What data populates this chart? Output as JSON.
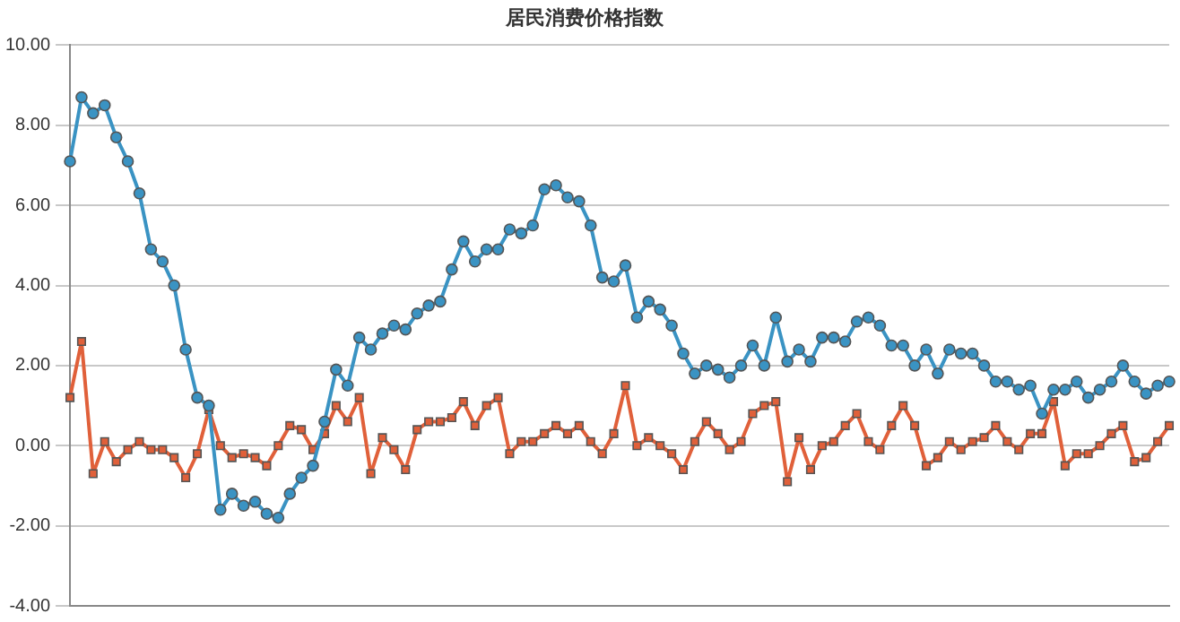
{
  "chart_data": {
    "type": "line",
    "title": "居民消费价格指数",
    "categories": [
      null,
      null,
      null,
      null,
      null,
      null,
      null,
      null,
      null,
      null,
      null,
      null,
      null,
      null,
      null,
      null,
      null,
      null,
      null,
      null,
      null,
      null,
      null,
      null,
      null,
      null,
      null,
      null,
      null,
      null,
      null,
      null,
      null,
      null,
      null,
      null,
      null,
      null,
      null,
      null,
      null,
      null,
      null,
      null,
      null,
      null,
      null,
      null,
      null,
      null,
      null,
      null,
      null,
      null,
      null,
      null,
      null,
      null,
      null,
      null,
      null,
      null,
      null,
      null,
      null,
      null,
      null,
      null,
      null,
      null,
      null,
      null,
      null,
      null,
      null,
      null,
      null,
      null,
      null,
      null,
      null,
      null,
      null,
      null,
      null,
      null,
      null,
      null,
      null,
      null,
      null,
      null,
      null,
      null,
      null,
      null
    ],
    "series": [
      {
        "color": "#3a93c3",
        "marker": "circle",
        "values": [
          7.1,
          8.7,
          8.3,
          8.5,
          7.7,
          7.1,
          6.3,
          4.9,
          4.6,
          4.0,
          2.4,
          1.2,
          1.0,
          -1.6,
          -1.2,
          -1.5,
          -1.4,
          -1.7,
          -1.8,
          -1.2,
          -0.8,
          -0.5,
          0.6,
          1.9,
          1.5,
          2.7,
          2.4,
          2.8,
          3.0,
          2.9,
          3.3,
          3.5,
          3.6,
          4.4,
          5.1,
          4.6,
          4.9,
          4.9,
          5.4,
          5.3,
          5.5,
          6.4,
          6.5,
          6.2,
          6.1,
          5.5,
          4.2,
          4.1,
          4.5,
          3.2,
          3.6,
          3.4,
          3.0,
          2.3,
          1.8,
          2.0,
          1.9,
          1.7,
          2.0,
          2.5,
          2.0,
          3.2,
          2.1,
          2.4,
          2.1,
          2.7,
          2.7,
          2.6,
          3.1,
          3.2,
          3.0,
          2.5,
          2.5,
          2.0,
          2.4,
          1.8,
          2.4,
          2.3,
          2.3,
          2.0,
          1.6,
          1.6,
          1.4,
          1.5,
          0.8,
          1.4,
          1.4,
          1.6,
          1.2,
          1.4,
          1.6,
          2.0,
          1.6,
          1.3,
          1.5,
          1.6
        ]
      },
      {
        "color": "#e0603a",
        "marker": "square",
        "values": [
          1.2,
          2.6,
          -0.7,
          0.1,
          -0.4,
          -0.1,
          0.1,
          -0.1,
          -0.1,
          -0.3,
          -0.8,
          -0.2,
          0.9,
          0.0,
          -0.3,
          -0.2,
          -0.3,
          -0.5,
          0.0,
          0.5,
          0.4,
          -0.1,
          0.3,
          1.0,
          0.6,
          1.2,
          -0.7,
          0.2,
          -0.1,
          -0.6,
          0.4,
          0.6,
          0.6,
          0.7,
          1.1,
          0.5,
          1.0,
          1.2,
          -0.2,
          0.1,
          0.1,
          0.3,
          0.5,
          0.3,
          0.5,
          0.1,
          -0.2,
          0.3,
          1.5,
          0.0,
          0.2,
          0.0,
          -0.2,
          -0.6,
          0.1,
          0.6,
          0.3,
          -0.1,
          0.1,
          0.8,
          1.0,
          1.1,
          -0.9,
          0.2,
          -0.6,
          0.0,
          0.1,
          0.5,
          0.8,
          0.1,
          -0.1,
          0.5,
          1.0,
          0.5,
          -0.5,
          -0.3,
          0.1,
          -0.1,
          0.1,
          0.2,
          0.5,
          0.1,
          -0.1,
          0.3,
          0.3,
          1.1,
          -0.5,
          -0.2,
          -0.2,
          0.0,
          0.3,
          0.5,
          -0.4,
          -0.3,
          0.1,
          0.5
        ]
      }
    ],
    "ylim": [
      -4,
      10
    ],
    "yticks": [
      {
        "value": -4,
        "label": "-4.00"
      },
      {
        "value": -2,
        "label": "-2.00"
      },
      {
        "value": 0,
        "label": "0.00"
      },
      {
        "value": 2,
        "label": "2.00"
      },
      {
        "value": 4,
        "label": "4.00"
      },
      {
        "value": 6,
        "label": "6.00"
      },
      {
        "value": 8,
        "label": "8.00"
      },
      {
        "value": 10,
        "label": "10.00"
      }
    ],
    "grid": "y",
    "tick_labels": "y"
  }
}
